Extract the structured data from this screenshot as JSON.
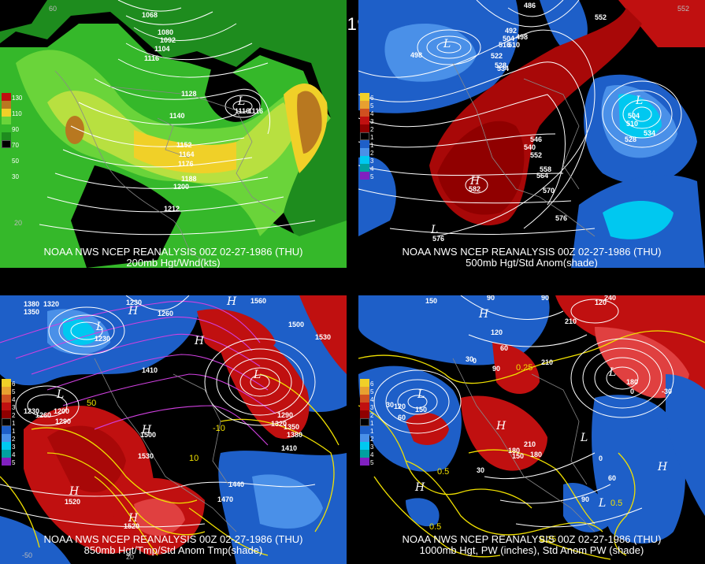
{
  "title": "00Z 02-27-1986 (THU)",
  "panels": [
    {
      "caption1": "NOAA NWS NCEP REANALYSIS 00Z 02-27-1986 (THU)",
      "caption2": "200mb Hgt/Wnd(kts)",
      "legend": [
        "130",
        "110",
        "90",
        "70",
        "50",
        "30"
      ],
      "labels": [
        "1068",
        "1080",
        "1092",
        "1104",
        "1116",
        "1128",
        "1140",
        "1152",
        "1164",
        "1176",
        "1188",
        "1200",
        "1212",
        "1116",
        "1116"
      ],
      "symbols": [
        "L"
      ],
      "edge": [
        "60",
        "20"
      ]
    },
    {
      "caption1": "NOAA NWS NCEP REANALYSIS 00Z 02-27-1986 (THU)",
      "caption2": "500mb Hgt/Std Anom(shade)",
      "legend": [
        "6",
        "5",
        "4",
        "3",
        "2",
        "1",
        "1",
        "2",
        "3",
        "4",
        "5"
      ],
      "labels": [
        "486",
        "492",
        "498",
        "504",
        "510",
        "516",
        "522",
        "528",
        "534",
        "540",
        "546",
        "552",
        "558",
        "564",
        "570",
        "576",
        "498",
        "504",
        "510",
        "528",
        "534",
        "552",
        "582",
        "576"
      ],
      "symbols": [
        "L",
        "L",
        "H",
        "L"
      ],
      "edge": [
        "552"
      ]
    },
    {
      "caption1": "NOAA NWS NCEP REANALYSIS 00Z 02-27-1986 (THU)",
      "caption2": "850mb Hgt/Tmp/Std Anom Tmp(shade)",
      "legend": [
        "6",
        "5",
        "4",
        "3",
        "2",
        "1",
        "1",
        "2",
        "3",
        "4",
        "5"
      ],
      "labels": [
        "1230",
        "1380",
        "1350",
        "1320",
        "1260",
        "1230",
        "1410",
        "1560",
        "1500",
        "1530",
        "1290",
        "1320",
        "1350",
        "1380",
        "1410",
        "1440",
        "1470",
        "1530",
        "1500",
        "1520",
        "1520",
        "1290",
        "1260",
        "1230",
        "1200",
        "10",
        "-10",
        "50"
      ],
      "symbols": [
        "H",
        "H",
        "H",
        "L",
        "L",
        "L",
        "H",
        "H",
        "H"
      ],
      "edge": [
        "-50",
        "20"
      ]
    },
    {
      "caption1": "NOAA NWS NCEP REANALYSIS 00Z 02-27-1986 (THU)",
      "caption2": "1000mb Hgt, PW (inches), Std Anom PW (shade)",
      "legend": [
        "6",
        "5",
        "4",
        "3",
        "2",
        "1",
        "1",
        "2",
        "3",
        "4",
        "5"
      ],
      "labels": [
        "150",
        "90",
        "90",
        "120",
        "60",
        "30",
        "0",
        "210",
        "180",
        "0",
        "-30",
        "30",
        "60",
        "90",
        "120",
        "150",
        "180",
        "210",
        "30",
        "0",
        "60",
        "90",
        "150",
        "180",
        "120",
        "210",
        "240"
      ],
      "yellow": [
        "0.25",
        "0.5",
        "0.5",
        "0.5",
        "0.25"
      ],
      "symbols": [
        "H",
        "L",
        "L",
        "H",
        "H",
        "L",
        "H",
        "L"
      ],
      "edge": []
    }
  ]
}
